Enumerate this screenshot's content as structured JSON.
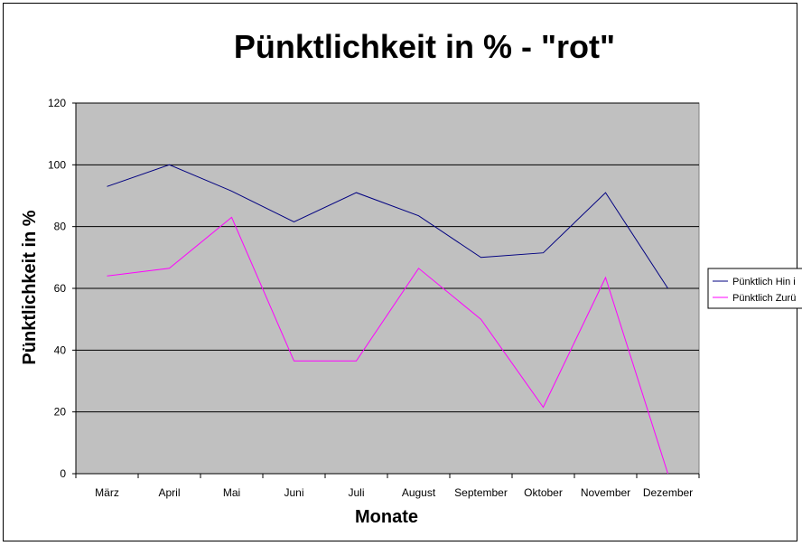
{
  "chart_data": {
    "type": "line",
    "title": "Pünktlichkeit in % - \"rot\"",
    "xlabel": "Monate",
    "ylabel": "Pünktlichkeit in %",
    "categories": [
      "März",
      "April",
      "Mai",
      "Juni",
      "Juli",
      "August",
      "September",
      "Oktober",
      "November",
      "Dezember"
    ],
    "ylim": [
      0,
      120
    ],
    "yticks": [
      0,
      20,
      40,
      60,
      80,
      100,
      120
    ],
    "grid": true,
    "plot_background": "#c0c0c0",
    "legend_position": "right",
    "series": [
      {
        "name": "Pünktlich Hin i",
        "color": "#000080",
        "values": [
          93,
          100,
          91.5,
          81.5,
          91,
          83.5,
          70,
          71.5,
          91,
          60
        ]
      },
      {
        "name": "Pünktlich Zurü",
        "color": "#ff00ff",
        "values": [
          64,
          66.5,
          83,
          36.5,
          36.5,
          66.5,
          50,
          21.5,
          63.5,
          0
        ]
      }
    ]
  }
}
